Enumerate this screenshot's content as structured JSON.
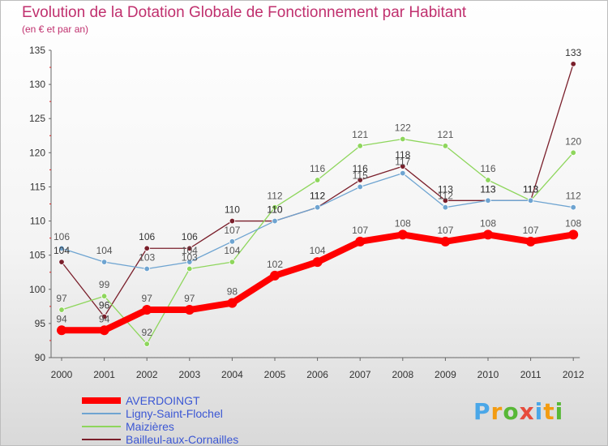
{
  "chart_data": {
    "type": "line",
    "title": "Evolution de la Dotation Globale de Fonctionnement par Habitant",
    "subtitle": "(en € et par an)",
    "xlabel": "",
    "ylabel": "",
    "x": [
      "2000",
      "2001",
      "2002",
      "2003",
      "2004",
      "2005",
      "2006",
      "2007",
      "2008",
      "2009",
      "2010",
      "2011",
      "2012"
    ],
    "ylim": [
      90,
      135
    ],
    "yticks": [
      "90",
      "95",
      "100",
      "105",
      "110",
      "115",
      "120",
      "125",
      "130",
      "135"
    ],
    "grid": false,
    "legend_position": "bottom-left",
    "series": [
      {
        "name": "AVERDOINGT",
        "color": "#ff0000",
        "values": [
          94,
          94,
          97,
          97,
          98,
          102,
          104,
          107,
          108,
          107,
          108,
          107,
          108
        ]
      },
      {
        "name": "Ligny-Saint-Flochel",
        "color": "#6ea4d1",
        "values": [
          106,
          104,
          103,
          104,
          107,
          110,
          112,
          115,
          117,
          112,
          113,
          113,
          112
        ]
      },
      {
        "name": "Maizières",
        "color": "#8ed65c",
        "values": [
          97,
          99,
          92,
          103,
          104,
          112,
          116,
          121,
          122,
          121,
          116,
          113,
          120
        ]
      },
      {
        "name": "Bailleul-aux-Cornailles",
        "color": "#7a1f2b",
        "values": [
          104,
          96,
          106,
          106,
          110,
          110,
          112,
          116,
          118,
          113,
          113,
          113,
          133
        ]
      }
    ]
  },
  "logo": {
    "letters": [
      "P",
      "r",
      "o",
      "x",
      "i",
      "t",
      "i"
    ],
    "colors": [
      "#4aa7e8",
      "#f39c12",
      "#58b837",
      "#e74c3c",
      "#4aa7e8",
      "#f39c12",
      "#58b837"
    ]
  }
}
